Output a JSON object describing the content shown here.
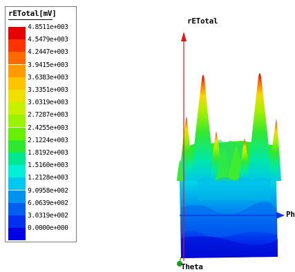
{
  "legend": {
    "title": "rETotal[mV]",
    "colors": [
      "#e60000",
      "#ff3300",
      "#ff6a00",
      "#ff9a00",
      "#ffc400",
      "#f0e000",
      "#c8f000",
      "#9cf200",
      "#66f000",
      "#2ee830",
      "#00e890",
      "#00f0d8",
      "#00c8f0",
      "#0094f0",
      "#0060f0",
      "#0030f0",
      "#0000e8"
    ],
    "entries": [
      "4.8511e+003",
      "4.5479e+003",
      "4.2447e+003",
      "3.9415e+003",
      "3.6383e+003",
      "3.3351e+003",
      "3.0319e+003",
      "2.7287e+003",
      "2.4255e+003",
      "2.1224e+003",
      "1.8192e+003",
      "1.5160e+003",
      "1.2128e+003",
      "9.0958e+002",
      "6.0639e+002",
      "3.0319e+002",
      "0.0000e+000"
    ]
  },
  "plot": {
    "z_axis_label": "rETotal",
    "phi_axis_label": "Phi",
    "theta_axis_label": "Theta",
    "z_axis_color": "#e01818",
    "phi_axis_color": "#1830e0",
    "theta_axis_color": "#18a018"
  }
}
